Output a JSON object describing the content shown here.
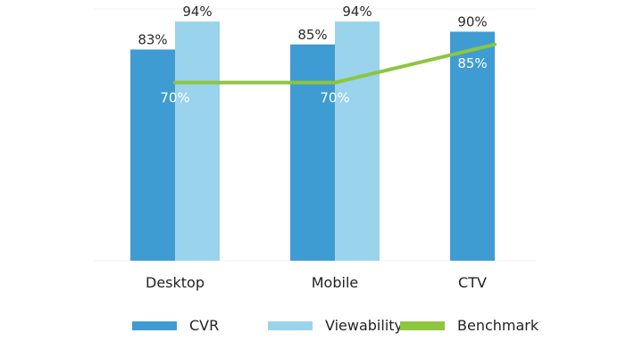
{
  "chart_data": {
    "type": "bar",
    "categories": [
      "Desktop",
      "Mobile",
      "CTV"
    ],
    "series": [
      {
        "name": "CVR",
        "color": "#3f9cd2",
        "values": [
          83,
          85,
          90
        ],
        "labels": [
          "83%",
          "85%",
          "90%"
        ]
      },
      {
        "name": "Viewability",
        "color": "#9ad3ec",
        "values": [
          94,
          94,
          null
        ],
        "labels": [
          "94%",
          "94%",
          ""
        ]
      },
      {
        "name": "Benchmark",
        "color": "#8dc63f",
        "type": "line",
        "values": [
          70,
          70,
          85
        ],
        "labels": [
          "70%",
          "70%",
          "85%"
        ]
      }
    ],
    "ylim": [
      0,
      100
    ],
    "grid": false,
    "legend": "bottom"
  }
}
